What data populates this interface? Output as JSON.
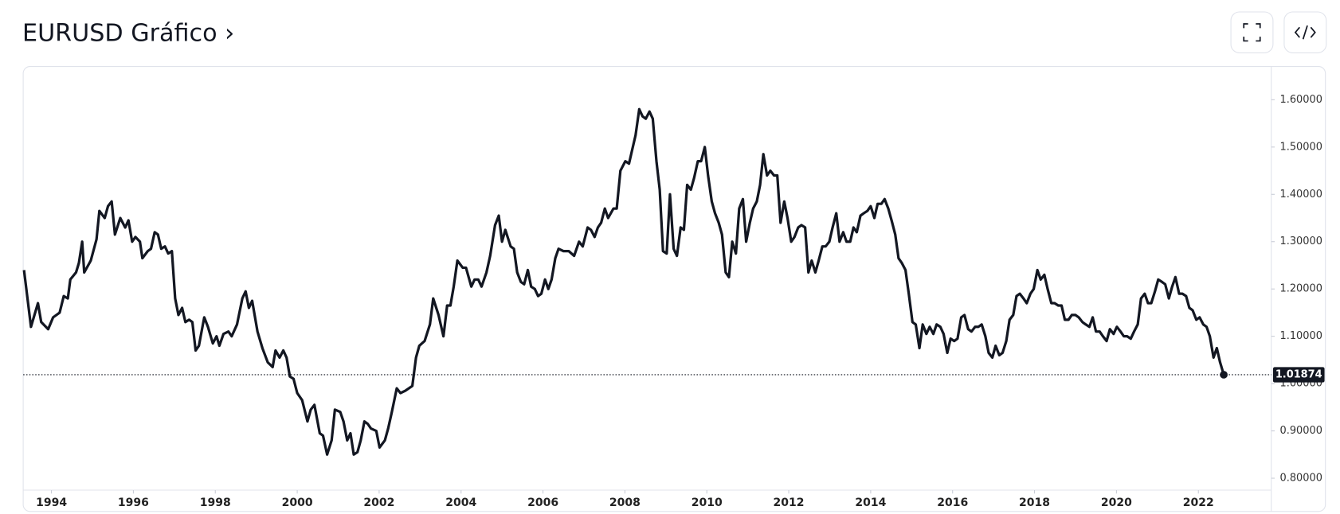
{
  "header": {
    "title": "EURUSD Gráfico ›"
  },
  "chart_data": {
    "type": "line",
    "color": "#131722",
    "xlim": [
      1993.31,
      2023.78
    ],
    "ylim": [
      0.7748,
      1.6703
    ],
    "xticks": [
      1994,
      1996,
      1998,
      2000,
      2002,
      2004,
      2006,
      2008,
      2010,
      2012,
      2014,
      2016,
      2018,
      2020,
      2022
    ],
    "yticks": [
      {
        "value": 0.8,
        "label": "0.80000"
      },
      {
        "value": 0.9,
        "label": "0.90000"
      },
      {
        "value": 1.0,
        "label": "1.00000"
      },
      {
        "value": 1.1,
        "label": "1.10000"
      },
      {
        "value": 1.2,
        "label": "1.20000"
      },
      {
        "value": 1.3,
        "label": "1.30000"
      },
      {
        "value": 1.4,
        "label": "1.40000"
      },
      {
        "value": 1.5,
        "label": "1.50000"
      },
      {
        "value": 1.6,
        "label": "1.60000"
      }
    ],
    "x": [
      1993.33,
      1993.5,
      1993.67,
      1993.75,
      1993.92,
      1994.04,
      1994.2,
      1994.3,
      1994.4,
      1994.46,
      1994.6,
      1994.67,
      1994.75,
      1994.8,
      1994.96,
      1995.1,
      1995.17,
      1995.3,
      1995.38,
      1995.47,
      1995.55,
      1995.68,
      1995.8,
      1995.88,
      1995.97,
      1996.05,
      1996.16,
      1996.22,
      1996.35,
      1996.43,
      1996.52,
      1996.6,
      1996.68,
      1996.77,
      1996.85,
      1996.94,
      1997.02,
      1997.1,
      1997.19,
      1997.27,
      1997.36,
      1997.44,
      1997.52,
      1997.6,
      1997.73,
      1997.82,
      1997.94,
      1998.03,
      1998.1,
      1998.2,
      1998.32,
      1998.4,
      1998.53,
      1998.66,
      1998.74,
      1998.82,
      1998.9,
      1999.03,
      1999.15,
      1999.28,
      1999.4,
      1999.47,
      1999.57,
      1999.66,
      1999.74,
      1999.82,
      1999.91,
      2000.0,
      2000.12,
      2000.25,
      2000.33,
      2000.42,
      2000.55,
      2000.63,
      2000.73,
      2000.84,
      2000.92,
      2001.05,
      2001.13,
      2001.22,
      2001.3,
      2001.38,
      2001.47,
      2001.55,
      2001.64,
      2001.72,
      2001.8,
      2001.93,
      2002.01,
      2002.14,
      2002.22,
      2002.31,
      2002.43,
      2002.52,
      2002.64,
      2002.81,
      2002.9,
      2002.98,
      2003.11,
      2003.24,
      2003.32,
      2003.45,
      2003.57,
      2003.66,
      2003.74,
      2003.82,
      2003.91,
      2004.04,
      2004.12,
      2004.25,
      2004.33,
      2004.42,
      2004.5,
      2004.62,
      2004.71,
      2004.83,
      2004.92,
      2005.0,
      2005.08,
      2005.21,
      2005.29,
      2005.37,
      2005.46,
      2005.54,
      2005.63,
      2005.71,
      2005.8,
      2005.88,
      2005.96,
      2006.05,
      2006.13,
      2006.21,
      2006.3,
      2006.38,
      2006.5,
      2006.63,
      2006.76,
      2006.88,
      2006.97,
      2007.09,
      2007.17,
      2007.26,
      2007.34,
      2007.42,
      2007.51,
      2007.59,
      2007.72,
      2007.8,
      2007.89,
      2008.01,
      2008.1,
      2008.18,
      2008.26,
      2008.35,
      2008.43,
      2008.51,
      2008.6,
      2008.68,
      2008.77,
      2008.85,
      2008.93,
      2009.02,
      2009.1,
      2009.19,
      2009.27,
      2009.36,
      2009.44,
      2009.52,
      2009.61,
      2009.69,
      2009.78,
      2009.86,
      2009.95,
      2010.03,
      2010.12,
      2010.2,
      2010.29,
      2010.37,
      2010.46,
      2010.54,
      2010.62,
      2010.71,
      2010.79,
      2010.88,
      2010.96,
      2011.05,
      2011.13,
      2011.22,
      2011.3,
      2011.38,
      2011.47,
      2011.55,
      2011.64,
      2011.72,
      2011.8,
      2011.89,
      2011.97,
      2012.06,
      2012.14,
      2012.23,
      2012.31,
      2012.4,
      2012.48,
      2012.56,
      2012.65,
      2012.73,
      2012.82,
      2012.9,
      2012.99,
      2013.07,
      2013.16,
      2013.24,
      2013.33,
      2013.41,
      2013.5,
      2013.58,
      2013.66,
      2013.75,
      2013.83,
      2013.92,
      2014.0,
      2014.09,
      2014.17,
      2014.26,
      2014.34,
      2014.43,
      2014.51,
      2014.6,
      2014.68,
      2014.76,
      2014.85,
      2014.93,
      2015.02,
      2015.1,
      2015.19,
      2015.27,
      2015.36,
      2015.44,
      2015.53,
      2015.61,
      2015.7,
      2015.78,
      2015.87,
      2015.95,
      2016.04,
      2016.12,
      2016.21,
      2016.29,
      2016.38,
      2016.46,
      2016.55,
      2016.63,
      2016.71,
      2016.8,
      2016.88,
      2016.97,
      2017.05,
      2017.14,
      2017.22,
      2017.31,
      2017.39,
      2017.48,
      2017.56,
      2017.64,
      2017.73,
      2017.81,
      2017.9,
      2017.98,
      2018.07,
      2018.15,
      2018.24,
      2018.32,
      2018.41,
      2018.49,
      2018.58,
      2018.66,
      2018.74,
      2018.83,
      2018.91,
      2019.0,
      2019.08,
      2019.17,
      2019.25,
      2019.34,
      2019.42,
      2019.5,
      2019.59,
      2019.67,
      2019.76,
      2019.84,
      2019.93,
      2020.01,
      2020.1,
      2020.18,
      2020.26,
      2020.35,
      2020.43,
      2020.52,
      2020.6,
      2020.69,
      2020.77,
      2020.85,
      2020.94,
      2021.02,
      2021.11,
      2021.19,
      2021.28,
      2021.36,
      2021.44,
      2021.53,
      2021.61,
      2021.7,
      2021.78,
      2021.86,
      2021.95,
      2022.03,
      2022.12,
      2022.2,
      2022.28,
      2022.37,
      2022.45,
      2022.53,
      2022.62
    ],
    "values": [
      1.24,
      1.12,
      1.17,
      1.13,
      1.115,
      1.14,
      1.15,
      1.185,
      1.18,
      1.22,
      1.235,
      1.255,
      1.3,
      1.235,
      1.26,
      1.305,
      1.365,
      1.35,
      1.375,
      1.385,
      1.315,
      1.35,
      1.33,
      1.345,
      1.3,
      1.31,
      1.3,
      1.265,
      1.28,
      1.285,
      1.32,
      1.315,
      1.285,
      1.29,
      1.275,
      1.28,
      1.18,
      1.145,
      1.16,
      1.13,
      1.135,
      1.13,
      1.07,
      1.08,
      1.14,
      1.12,
      1.085,
      1.1,
      1.08,
      1.105,
      1.11,
      1.1,
      1.125,
      1.18,
      1.195,
      1.16,
      1.175,
      1.11,
      1.075,
      1.045,
      1.035,
      1.07,
      1.055,
      1.07,
      1.055,
      1.015,
      1.01,
      0.98,
      0.965,
      0.92,
      0.945,
      0.955,
      0.895,
      0.89,
      0.85,
      0.88,
      0.945,
      0.94,
      0.92,
      0.88,
      0.895,
      0.85,
      0.855,
      0.88,
      0.92,
      0.915,
      0.905,
      0.9,
      0.865,
      0.88,
      0.905,
      0.94,
      0.99,
      0.98,
      0.985,
      0.995,
      1.055,
      1.08,
      1.09,
      1.125,
      1.18,
      1.145,
      1.1,
      1.165,
      1.165,
      1.205,
      1.26,
      1.245,
      1.245,
      1.205,
      1.22,
      1.22,
      1.205,
      1.235,
      1.27,
      1.335,
      1.355,
      1.3,
      1.325,
      1.29,
      1.285,
      1.235,
      1.215,
      1.21,
      1.24,
      1.205,
      1.2,
      1.185,
      1.19,
      1.22,
      1.2,
      1.22,
      1.265,
      1.285,
      1.28,
      1.28,
      1.27,
      1.3,
      1.29,
      1.33,
      1.325,
      1.31,
      1.33,
      1.34,
      1.37,
      1.35,
      1.37,
      1.37,
      1.45,
      1.47,
      1.465,
      1.495,
      1.525,
      1.58,
      1.565,
      1.56,
      1.575,
      1.56,
      1.47,
      1.41,
      1.28,
      1.275,
      1.4,
      1.285,
      1.27,
      1.33,
      1.325,
      1.42,
      1.41,
      1.435,
      1.47,
      1.47,
      1.5,
      1.44,
      1.385,
      1.36,
      1.34,
      1.315,
      1.235,
      1.225,
      1.3,
      1.275,
      1.37,
      1.39,
      1.3,
      1.34,
      1.37,
      1.385,
      1.42,
      1.485,
      1.44,
      1.45,
      1.44,
      1.44,
      1.34,
      1.385,
      1.35,
      1.3,
      1.31,
      1.33,
      1.335,
      1.33,
      1.235,
      1.26,
      1.235,
      1.26,
      1.29,
      1.29,
      1.3,
      1.33,
      1.36,
      1.3,
      1.32,
      1.3,
      1.3,
      1.33,
      1.32,
      1.355,
      1.36,
      1.365,
      1.375,
      1.35,
      1.38,
      1.38,
      1.39,
      1.37,
      1.345,
      1.315,
      1.265,
      1.255,
      1.24,
      1.19,
      1.13,
      1.125,
      1.075,
      1.125,
      1.105,
      1.12,
      1.105,
      1.125,
      1.12,
      1.105,
      1.065,
      1.095,
      1.09,
      1.095,
      1.14,
      1.145,
      1.115,
      1.11,
      1.12,
      1.12,
      1.125,
      1.1,
      1.065,
      1.055,
      1.08,
      1.06,
      1.065,
      1.09,
      1.135,
      1.145,
      1.185,
      1.19,
      1.18,
      1.17,
      1.19,
      1.2,
      1.24,
      1.22,
      1.23,
      1.2,
      1.17,
      1.17,
      1.165,
      1.165,
      1.135,
      1.135,
      1.145,
      1.145,
      1.14,
      1.13,
      1.125,
      1.12,
      1.14,
      1.11,
      1.11,
      1.1,
      1.09,
      1.115,
      1.105,
      1.12,
      1.11,
      1.1,
      1.1,
      1.095,
      1.11,
      1.125,
      1.18,
      1.19,
      1.17,
      1.17,
      1.195,
      1.22,
      1.215,
      1.21,
      1.18,
      1.205,
      1.225,
      1.19,
      1.19,
      1.185,
      1.16,
      1.155,
      1.135,
      1.14,
      1.125,
      1.12,
      1.1,
      1.055,
      1.075,
      1.045,
      1.01874
    ]
  }
}
